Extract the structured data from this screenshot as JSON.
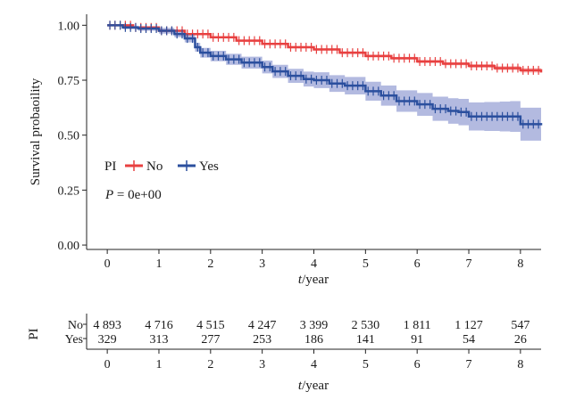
{
  "chart_data": {
    "type": "line",
    "ylabel": "Survival probaoility",
    "xlabel_prefix": "t",
    "xlabel_suffix": "/year",
    "xlim": [
      -0.4,
      8.4
    ],
    "ylim": [
      -0.02,
      1.05
    ],
    "x_ticks": [
      0,
      1,
      2,
      3,
      4,
      5,
      6,
      7,
      8
    ],
    "x_tick_labels": [
      "0",
      "1",
      "2",
      "3",
      "4",
      "5",
      "6",
      "7",
      "8"
    ],
    "y_ticks": [
      0.0,
      0.25,
      0.5,
      0.75,
      1.0
    ],
    "y_tick_labels": [
      "0.00",
      "0.25",
      "0.50",
      "0.75",
      "1.00"
    ],
    "legend": {
      "title": "PI",
      "position": "center-left",
      "entries": [
        {
          "label": "No",
          "color": "#e84040"
        },
        {
          "label": "Yes",
          "color": "#2b4f9e"
        }
      ]
    },
    "annotation_prefix": "P",
    "annotation_text": " = 0e+00",
    "series": [
      {
        "name": "No",
        "color": "#e84040",
        "band_color": "#f4a3a3",
        "x": [
          0,
          0.5,
          1,
          1.5,
          2,
          2.5,
          3,
          3.5,
          4,
          4.5,
          5,
          5.5,
          6,
          6.5,
          7,
          7.5,
          8,
          8.4
        ],
        "y": [
          1.0,
          0.99,
          0.975,
          0.96,
          0.945,
          0.93,
          0.915,
          0.9,
          0.89,
          0.875,
          0.86,
          0.85,
          0.835,
          0.825,
          0.815,
          0.805,
          0.795,
          0.785
        ],
        "ci_halfwidth": [
          0.0,
          0.003,
          0.004,
          0.004,
          0.004,
          0.005,
          0.005,
          0.005,
          0.005,
          0.006,
          0.006,
          0.006,
          0.007,
          0.007,
          0.008,
          0.009,
          0.01,
          0.012
        ]
      },
      {
        "name": "Yes",
        "color": "#2b4f9e",
        "band_color": "#9aa3d6",
        "x": [
          0,
          0.3,
          0.6,
          1.0,
          1.3,
          1.5,
          1.7,
          1.8,
          2.0,
          2.3,
          2.6,
          3.0,
          3.2,
          3.5,
          3.8,
          4.0,
          4.3,
          4.6,
          5.0,
          5.3,
          5.6,
          6.0,
          6.3,
          6.6,
          6.8,
          7.0,
          7.3,
          7.6,
          7.8,
          8.0,
          8.4
        ],
        "y": [
          1.0,
          0.99,
          0.985,
          0.975,
          0.96,
          0.94,
          0.9,
          0.875,
          0.86,
          0.845,
          0.83,
          0.81,
          0.79,
          0.77,
          0.755,
          0.75,
          0.735,
          0.725,
          0.7,
          0.68,
          0.655,
          0.64,
          0.62,
          0.61,
          0.605,
          0.585,
          0.585,
          0.585,
          0.585,
          0.55,
          0.545
        ],
        "ci_halfwidth": [
          0.0,
          0.008,
          0.01,
          0.013,
          0.015,
          0.018,
          0.02,
          0.022,
          0.024,
          0.025,
          0.027,
          0.029,
          0.03,
          0.032,
          0.034,
          0.036,
          0.038,
          0.04,
          0.043,
          0.046,
          0.049,
          0.052,
          0.055,
          0.058,
          0.06,
          0.064,
          0.066,
          0.068,
          0.07,
          0.075,
          0.078
        ]
      }
    ]
  },
  "risk_table": {
    "strata_title": "PI",
    "x_ticks": [
      0,
      1,
      2,
      3,
      4,
      5,
      6,
      7,
      8
    ],
    "x_tick_labels": [
      "0",
      "1",
      "2",
      "3",
      "4",
      "5",
      "6",
      "7",
      "8"
    ],
    "xlabel_prefix": "t",
    "xlabel_suffix": "/year",
    "rows": [
      {
        "label": "No",
        "values": [
          "4 893",
          "4 716",
          "4 515",
          "4 247",
          "3 399",
          "2 530",
          "1 811",
          "1 127",
          "547"
        ]
      },
      {
        "label": "Yes",
        "values": [
          "329",
          "313",
          "277",
          "253",
          "186",
          "141",
          "91",
          "54",
          "26"
        ]
      }
    ]
  }
}
